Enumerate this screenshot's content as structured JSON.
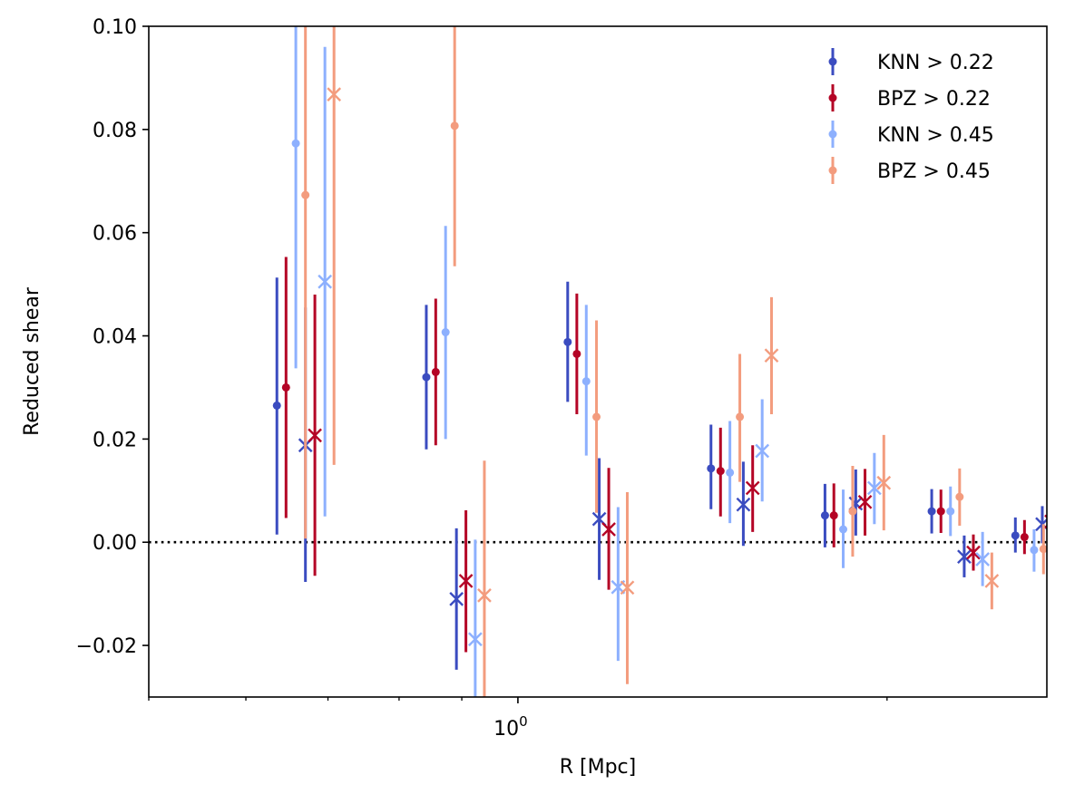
{
  "chart_data": {
    "type": "errorbar",
    "xlabel": "R [Mpc]",
    "ylabel": "Reduced shear",
    "xscale": "log",
    "xlim": [
      0.5,
      2.7
    ],
    "ylim": [
      -0.03,
      0.1
    ],
    "x_tick_labels": [
      {
        "base": "10",
        "exp": "0",
        "value": 1.0
      }
    ],
    "x_minor_ticks": [
      0.5,
      0.6,
      0.7,
      0.8,
      0.9,
      2.0
    ],
    "y_ticks": [
      -0.02,
      0.0,
      0.02,
      0.04,
      0.06,
      0.08,
      0.1
    ],
    "y_tick_labels": [
      "−0.02",
      "0.00",
      "0.02",
      "0.04",
      "0.06",
      "0.08",
      "0.10"
    ],
    "reference_line": {
      "y": 0.0,
      "style": "dotted"
    },
    "legend": {
      "position": "top-right"
    },
    "series": [
      {
        "name": "KNN > 0.22",
        "color": "#3b4cc0",
        "tangential": [
          {
            "x": 0.636,
            "y": 0.0265,
            "lo": 0.0015,
            "hi": 0.0513
          },
          {
            "x": 0.842,
            "y": 0.032,
            "lo": 0.018,
            "hi": 0.046
          },
          {
            "x": 1.098,
            "y": 0.0388,
            "lo": 0.0272,
            "hi": 0.0505
          },
          {
            "x": 1.437,
            "y": 0.0143,
            "lo": 0.0064,
            "hi": 0.0228
          },
          {
            "x": 1.78,
            "y": 0.0052,
            "lo": -0.001,
            "hi": 0.0113
          },
          {
            "x": 2.175,
            "y": 0.006,
            "lo": 0.0017,
            "hi": 0.0103
          },
          {
            "x": 2.545,
            "y": 0.0013,
            "lo": -0.002,
            "hi": 0.0048
          }
        ],
        "cross": [
          {
            "x": 0.671,
            "y": 0.0188,
            "lo": -0.0077,
            "hi": 0.0455
          },
          {
            "x": 0.891,
            "y": -0.011,
            "lo": -0.0247,
            "hi": 0.0027
          },
          {
            "x": 1.165,
            "y": 0.0045,
            "lo": -0.0073,
            "hi": 0.0163
          },
          {
            "x": 1.527,
            "y": 0.0073,
            "lo": -0.0007,
            "hi": 0.0156
          },
          {
            "x": 1.886,
            "y": 0.0075,
            "lo": 0.0013,
            "hi": 0.0141
          },
          {
            "x": 2.312,
            "y": -0.0028,
            "lo": -0.0068,
            "hi": 0.0013
          },
          {
            "x": 2.677,
            "y": 0.0035,
            "lo": -0.0002,
            "hi": 0.007
          }
        ]
      },
      {
        "name": "BPZ > 0.22",
        "color": "#b40426",
        "tangential": [
          {
            "x": 0.647,
            "y": 0.03,
            "lo": 0.0047,
            "hi": 0.0553
          },
          {
            "x": 0.857,
            "y": 0.033,
            "lo": 0.0188,
            "hi": 0.0472
          },
          {
            "x": 1.117,
            "y": 0.0365,
            "lo": 0.0248,
            "hi": 0.0482
          },
          {
            "x": 1.463,
            "y": 0.0138,
            "lo": 0.005,
            "hi": 0.0222
          },
          {
            "x": 1.81,
            "y": 0.0052,
            "lo": -0.001,
            "hi": 0.0114
          },
          {
            "x": 2.213,
            "y": 0.006,
            "lo": 0.0018,
            "hi": 0.0102
          },
          {
            "x": 2.589,
            "y": 0.001,
            "lo": -0.0023,
            "hi": 0.0043
          }
        ],
        "cross": [
          {
            "x": 0.683,
            "y": 0.0207,
            "lo": -0.0065,
            "hi": 0.048
          },
          {
            "x": 0.907,
            "y": -0.0075,
            "lo": -0.0213,
            "hi": 0.0062
          },
          {
            "x": 1.186,
            "y": 0.0025,
            "lo": -0.0092,
            "hi": 0.0144
          },
          {
            "x": 1.554,
            "y": 0.0105,
            "lo": 0.002,
            "hi": 0.0188
          },
          {
            "x": 1.919,
            "y": 0.0078,
            "lo": 0.0013,
            "hi": 0.0142
          },
          {
            "x": 2.352,
            "y": -0.002,
            "lo": -0.0055,
            "hi": 0.0015
          },
          {
            "x": 2.723,
            "y": 0.004,
            "lo": 0.0006,
            "hi": 0.0075
          }
        ]
      },
      {
        "name": "KNN > 0.45",
        "color": "#8db0fe",
        "tangential": [
          {
            "x": 0.659,
            "y": 0.0773,
            "lo": 0.0337,
            "hi": 0.1
          },
          {
            "x": 0.873,
            "y": 0.0407,
            "lo": 0.02,
            "hi": 0.0613
          },
          {
            "x": 1.137,
            "y": 0.0312,
            "lo": 0.0168,
            "hi": 0.046
          },
          {
            "x": 1.489,
            "y": 0.0135,
            "lo": 0.0037,
            "hi": 0.0235
          },
          {
            "x": 1.842,
            "y": 0.0025,
            "lo": -0.005,
            "hi": 0.0102
          },
          {
            "x": 2.253,
            "y": 0.006,
            "lo": 0.0012,
            "hi": 0.0108
          },
          {
            "x": 2.636,
            "y": -0.0015,
            "lo": -0.0057,
            "hi": 0.0025
          }
        ],
        "cross": [
          {
            "x": 0.696,
            "y": 0.0505,
            "lo": 0.005,
            "hi": 0.096
          },
          {
            "x": 0.923,
            "y": -0.0188,
            "lo": -0.03,
            "hi": 0.0005
          },
          {
            "x": 1.207,
            "y": -0.0087,
            "lo": -0.023,
            "hi": 0.0068
          },
          {
            "x": 1.582,
            "y": 0.0177,
            "lo": 0.0079,
            "hi": 0.0277
          },
          {
            "x": 1.953,
            "y": 0.0105,
            "lo": 0.0035,
            "hi": 0.0173
          },
          {
            "x": 2.393,
            "y": -0.0033,
            "lo": -0.0085,
            "hi": 0.002
          },
          {
            "x": 2.772,
            "y": 0.0043,
            "lo": -0.0002,
            "hi": 0.0088
          }
        ]
      },
      {
        "name": "BPZ > 0.45",
        "color": "#f39c7e",
        "tangential": [
          {
            "x": 0.671,
            "y": 0.0673,
            "lo": 0.0007,
            "hi": 0.1
          },
          {
            "x": 0.888,
            "y": 0.0807,
            "lo": 0.0535,
            "hi": 0.1
          },
          {
            "x": 1.159,
            "y": 0.0243,
            "lo": 0.0057,
            "hi": 0.043
          },
          {
            "x": 1.517,
            "y": 0.0243,
            "lo": 0.0117,
            "hi": 0.0365
          },
          {
            "x": 1.875,
            "y": 0.006,
            "lo": -0.0028,
            "hi": 0.0148
          },
          {
            "x": 2.292,
            "y": 0.0088,
            "lo": 0.0032,
            "hi": 0.0143
          },
          {
            "x": 2.683,
            "y": -0.0013,
            "lo": -0.0062,
            "hi": 0.0035
          }
        ],
        "cross": [
          {
            "x": 0.708,
            "y": 0.0868,
            "lo": 0.015,
            "hi": 0.1
          },
          {
            "x": 0.939,
            "y": -0.0103,
            "lo": -0.0345,
            "hi": 0.0158
          },
          {
            "x": 1.228,
            "y": -0.0088,
            "lo": -0.0275,
            "hi": 0.0097
          },
          {
            "x": 1.61,
            "y": 0.0362,
            "lo": 0.0248,
            "hi": 0.0475
          },
          {
            "x": 1.988,
            "y": 0.0115,
            "lo": 0.0023,
            "hi": 0.0208
          },
          {
            "x": 2.435,
            "y": -0.0075,
            "lo": -0.013,
            "hi": -0.002
          },
          {
            "x": 2.822,
            "y": 0.0037,
            "lo": -0.0002,
            "hi": 0.0075
          }
        ]
      }
    ]
  }
}
